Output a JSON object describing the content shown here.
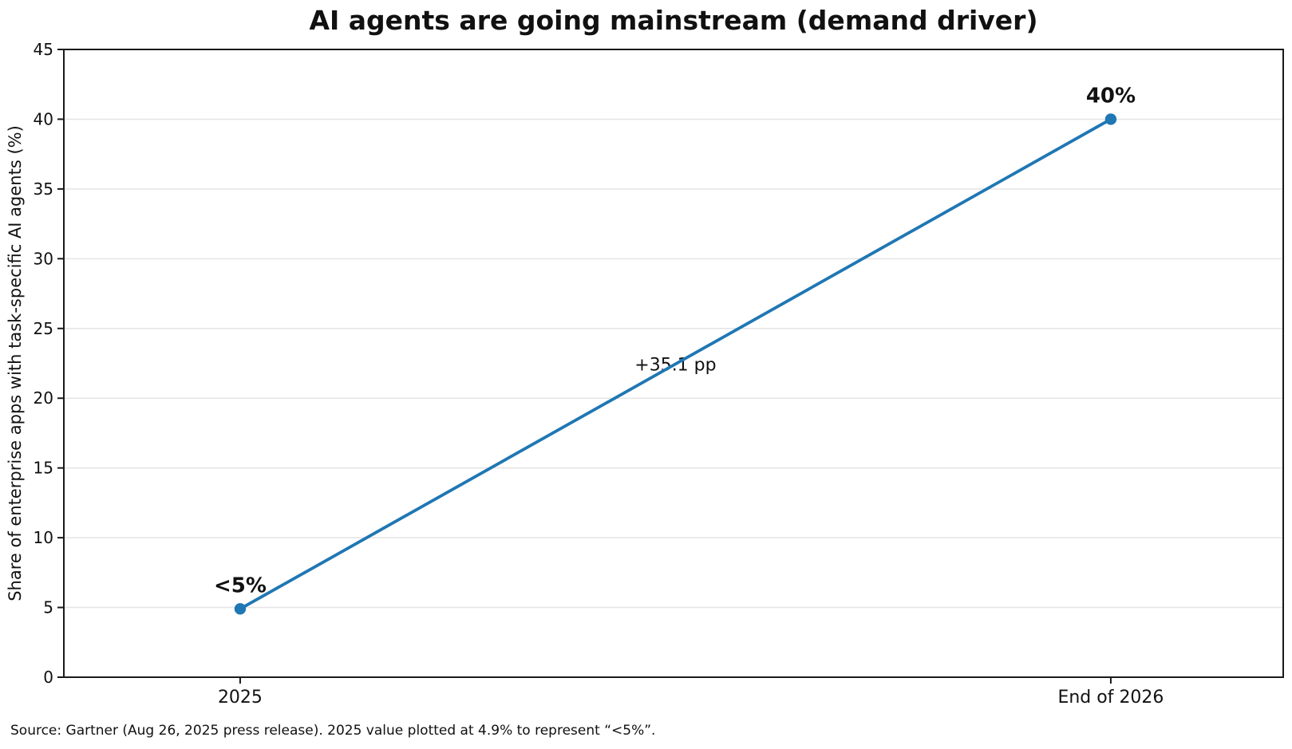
{
  "chart_data": {
    "type": "line",
    "title": "AI agents are going mainstream (demand driver)",
    "xlabel": "",
    "ylabel": "Share of enterprise apps with task-specific AI agents (%)",
    "categories": [
      "2025",
      "End of 2026"
    ],
    "series": [
      {
        "name": "Share of enterprise apps with task-specific AI agents",
        "values": [
          4.9,
          40
        ]
      }
    ],
    "point_labels": [
      "<5%",
      "40%"
    ],
    "annotation": "+35.1 pp",
    "ylim": [
      0,
      45
    ],
    "ytick_step": 5,
    "yticks": [
      0,
      5,
      10,
      15,
      20,
      25,
      30,
      35,
      40,
      45
    ],
    "grid": true,
    "legend_position": "none",
    "line_color": "#1f77b4",
    "grid_color": "#e4e4e4",
    "axis_color": "#1a1a1a",
    "text_color": "#111111"
  },
  "source_note": "Source: Gartner (Aug 26, 2025 press release). 2025 value plotted at 4.9% to represent “<5%”."
}
